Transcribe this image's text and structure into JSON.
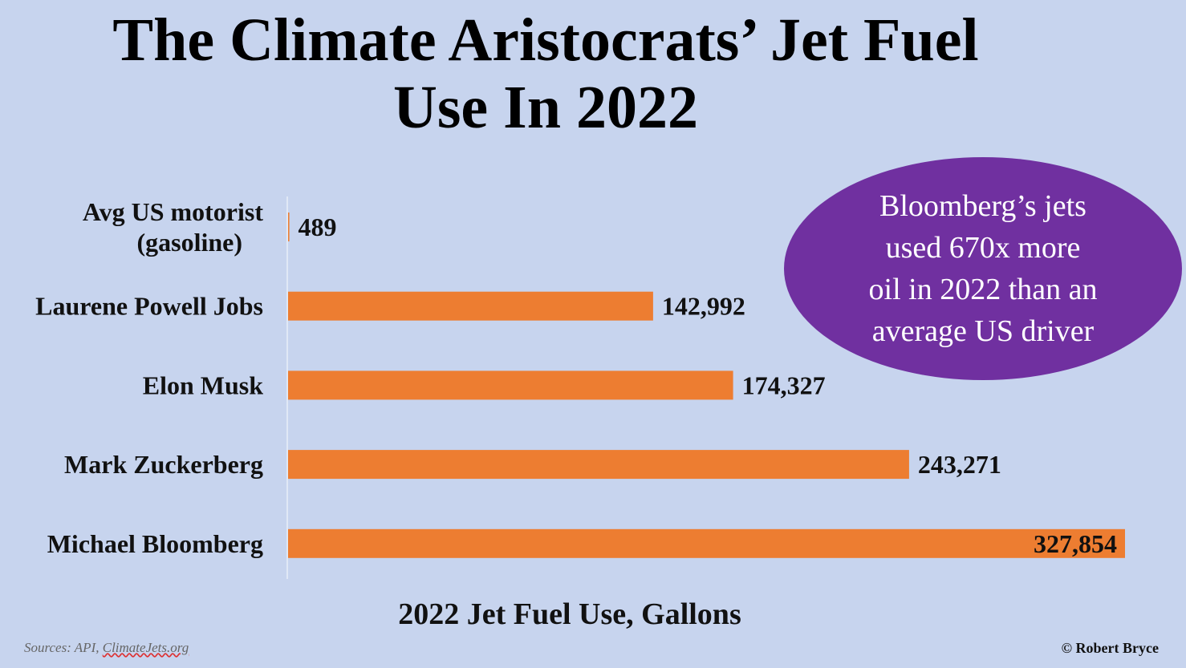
{
  "title_lines": [
    "The Climate Aristocrats’ Jet Fuel",
    "Use In 2022"
  ],
  "colors": {
    "background": "#c7d4ee",
    "bar": "#ed7d31",
    "bubble": "#7030a0"
  },
  "callout_lines": [
    "Bloomberg’s jets",
    "used 670x more",
    "oil in 2022 than an",
    "average US driver"
  ],
  "sources": {
    "prefix": "Sources: API,  ",
    "link": "ClimateJets.org"
  },
  "credit": "© Robert Bryce",
  "chart_data": {
    "type": "bar",
    "orientation": "horizontal",
    "title": "The Climate Aristocrats’ Jet Fuel Use In 2022",
    "xlabel": "2022 Jet Fuel Use, Gallons",
    "ylabel": "",
    "categories": [
      [
        "Avg US motorist",
        "(gasoline)"
      ],
      [
        "Laurene Powell Jobs"
      ],
      [
        "Elon Musk"
      ],
      [
        "Mark Zuckerberg"
      ],
      [
        "Michael Bloomberg"
      ]
    ],
    "values": [
      489,
      142992,
      174327,
      243271,
      327854
    ],
    "value_labels": [
      "489",
      "142,992",
      "174,327",
      "243,271",
      "327,854"
    ],
    "xlim": [
      0,
      327854
    ],
    "grid": false,
    "legend": "none"
  }
}
